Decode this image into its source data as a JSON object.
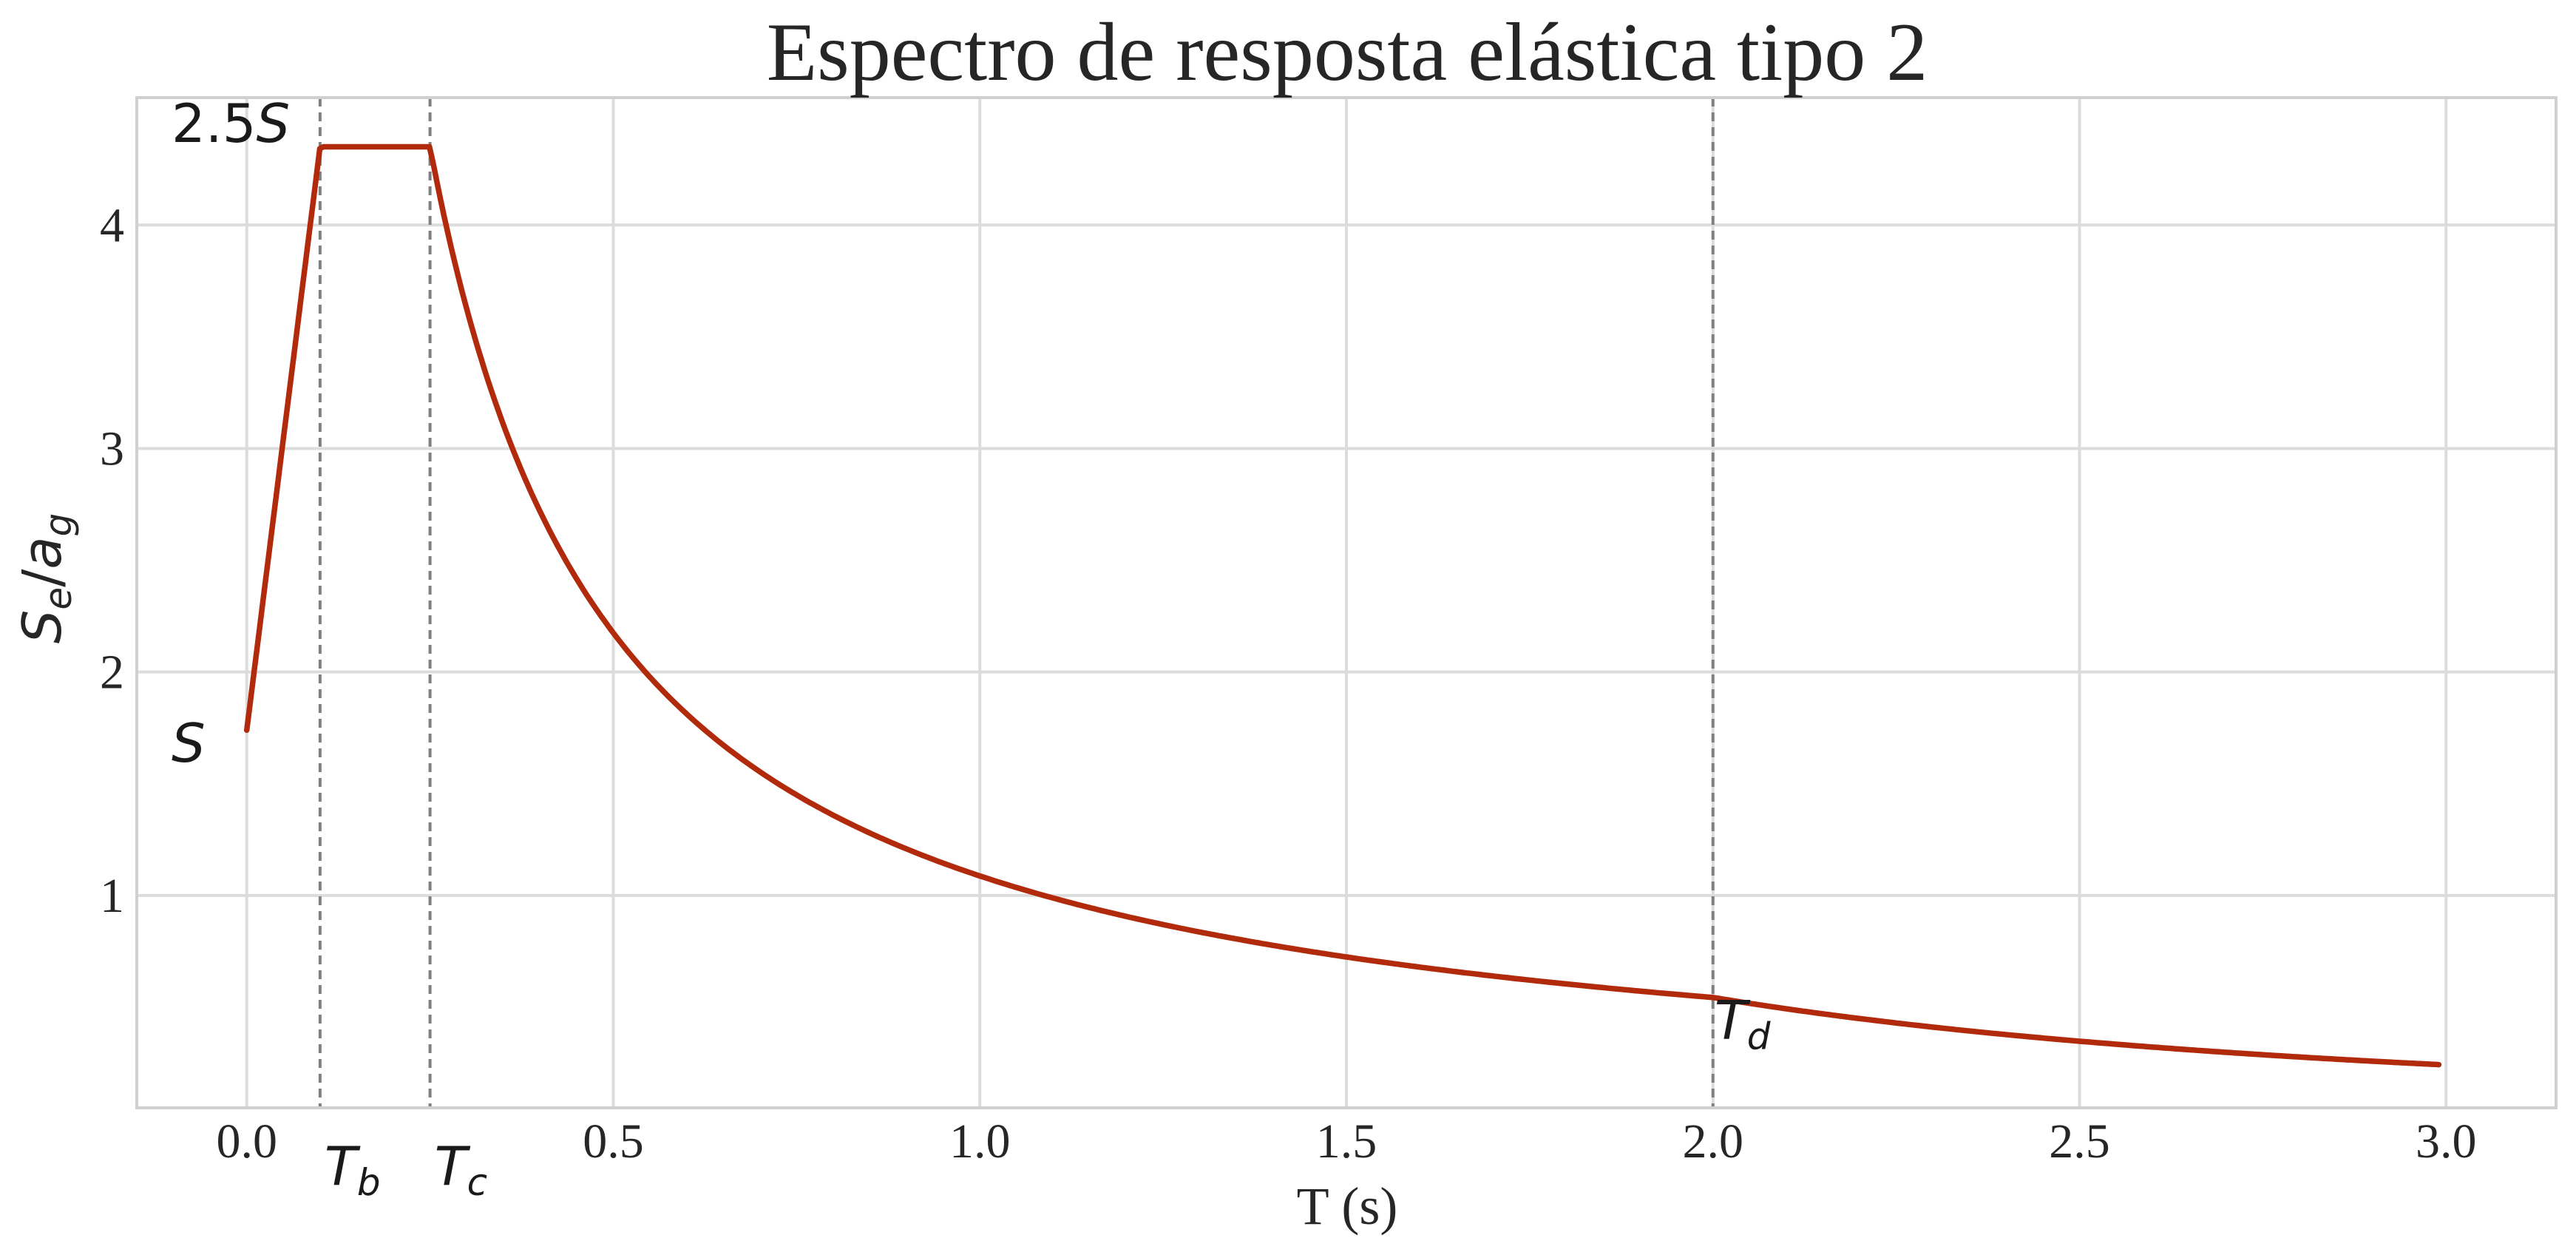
{
  "chart_data": {
    "type": "line",
    "title": "Espectro de resposta elástica tipo 2",
    "xlabel": "T (s)",
    "ylabel": {
      "base": "S",
      "base_sub": "e",
      "sep": "/",
      "denom": "a",
      "denom_sub": "g"
    },
    "xlim": [
      -0.15,
      3.15
    ],
    "ylim": [
      0.05,
      4.57
    ],
    "x_ticks": [
      0.0,
      0.5,
      1.0,
      1.5,
      2.0,
      2.5,
      3.0
    ],
    "x_tick_labels": [
      "0.0",
      "0.5",
      "1.0",
      "1.5",
      "2.0",
      "2.5",
      "3.0"
    ],
    "y_ticks": [
      1,
      2,
      3,
      4
    ],
    "y_tick_labels": [
      "1",
      "2",
      "3",
      "4"
    ],
    "grid": true,
    "spectrum": {
      "S": 1.74,
      "eta": 1.0,
      "TB": 0.1,
      "TC": 0.25,
      "TD": 2.0,
      "T_max": 2.99
    },
    "series": [
      {
        "color": "#b22a0c",
        "points": [
          [
            0.0,
            1.74
          ],
          [
            0.1,
            4.35
          ],
          [
            0.25,
            4.35
          ],
          [
            0.3,
            3.63
          ],
          [
            0.4,
            2.72
          ],
          [
            0.5,
            2.18
          ],
          [
            0.6,
            1.81
          ],
          [
            0.8,
            1.36
          ],
          [
            1.0,
            1.09
          ],
          [
            1.25,
            0.87
          ],
          [
            1.5,
            0.73
          ],
          [
            1.75,
            0.62
          ],
          [
            2.0,
            0.54
          ],
          [
            2.25,
            0.43
          ],
          [
            2.5,
            0.35
          ],
          [
            2.75,
            0.29
          ],
          [
            2.99,
            0.24
          ]
        ]
      }
    ],
    "vertical_lines": [
      {
        "x": 0.1,
        "label_base": "T",
        "label_sub": "b"
      },
      {
        "x": 0.25,
        "label_base": "T",
        "label_sub": "c"
      },
      {
        "x": 2.0,
        "label_base": "T",
        "label_sub": "d"
      }
    ],
    "annotations": [
      {
        "text": "2.5",
        "italic_part": "S",
        "x": -0.1,
        "y": 4.35
      },
      {
        "text": "",
        "italic_part": "S",
        "x": -0.1,
        "y": 1.6
      }
    ]
  }
}
